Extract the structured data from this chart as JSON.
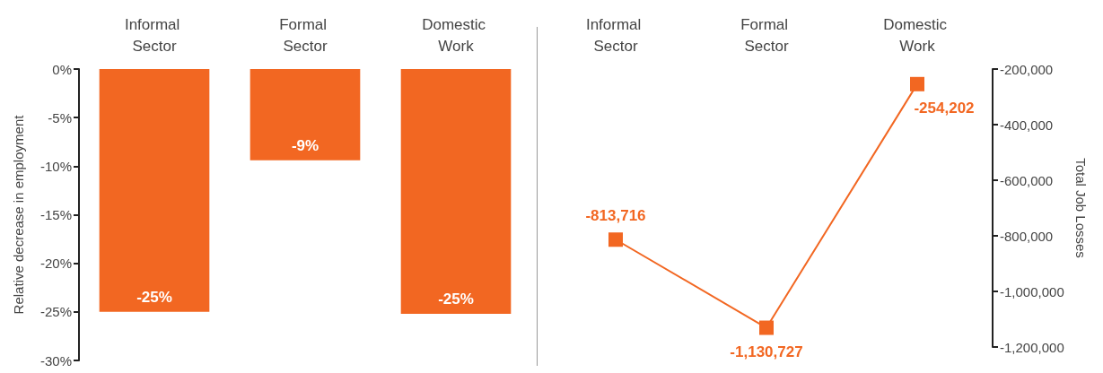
{
  "chart_data": [
    {
      "type": "bar",
      "categories": [
        "Informal Sector",
        "Formal Sector",
        "Domestic Work"
      ],
      "values": [
        -25,
        -9.4,
        -25.2
      ],
      "value_labels": [
        "-25%",
        "-9%",
        "-25%"
      ],
      "color": "#f26722",
      "ylabel": "Relative decrease in employment",
      "ylim": [
        -30,
        0
      ],
      "yticks": [
        {
          "value": 0,
          "label": "0%"
        },
        {
          "value": -5,
          "label": "-5%"
        },
        {
          "value": -10,
          "label": "-10%"
        },
        {
          "value": -15,
          "label": "-15%"
        },
        {
          "value": -20,
          "label": "-20%"
        },
        {
          "value": -25,
          "label": "-25%"
        },
        {
          "value": -30,
          "label": "-30%"
        }
      ],
      "grid": false
    },
    {
      "type": "line",
      "categories": [
        "Informal Sector",
        "Formal Sector",
        "Domestic Work"
      ],
      "values": [
        -813716,
        -1130727,
        -254202
      ],
      "value_labels": [
        "-813,716",
        "-1,130,727",
        "-254,202"
      ],
      "color": "#f26722",
      "marker": "square",
      "ylabel": "Total Job Losses",
      "ylim": [
        -1200000,
        -200000
      ],
      "yticks": [
        {
          "value": -200000,
          "label": "-200,000"
        },
        {
          "value": -400000,
          "label": "-400,000"
        },
        {
          "value": -600000,
          "label": "-600,000"
        },
        {
          "value": -800000,
          "label": "-800,000"
        },
        {
          "value": -1000000,
          "label": "-1,000,000"
        },
        {
          "value": -1200000,
          "label": "-1,200,000"
        }
      ],
      "grid": false
    }
  ]
}
